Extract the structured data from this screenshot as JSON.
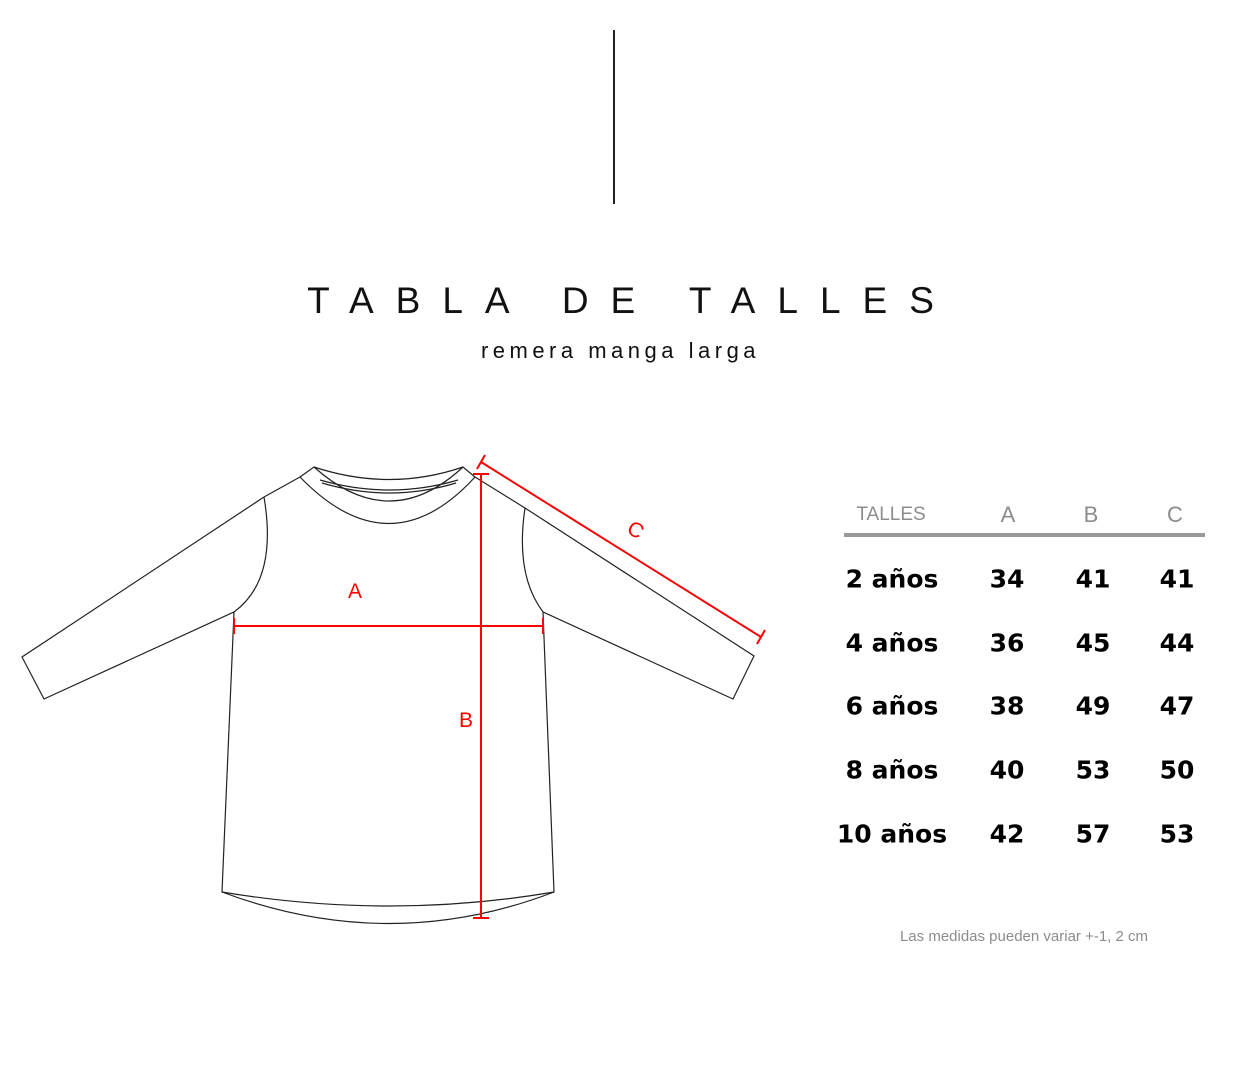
{
  "title": "TABLA DE TALLES",
  "subtitle": "remera manga larga",
  "measure_labels": {
    "a": "A",
    "b": "B",
    "c": "C"
  },
  "colors": {
    "measure_lines": "#ff0000",
    "outline": "#222222",
    "header_text": "#8c8c8c",
    "header_rule": "#999999"
  },
  "table": {
    "headers": [
      "TALLES",
      "A",
      "B",
      "C"
    ],
    "rows": [
      {
        "size": "2 años",
        "a": "34",
        "b": "41",
        "c": "41"
      },
      {
        "size": "4 años",
        "a": "36",
        "b": "45",
        "c": "44"
      },
      {
        "size": "6 años",
        "a": "38",
        "b": "49",
        "c": "47"
      },
      {
        "size": "8 años",
        "a": "40",
        "b": "53",
        "c": "50"
      },
      {
        "size": "10 años",
        "a": "42",
        "b": "57",
        "c": "53"
      }
    ]
  },
  "note": "Las medidas pueden variar +-1, 2 cm"
}
